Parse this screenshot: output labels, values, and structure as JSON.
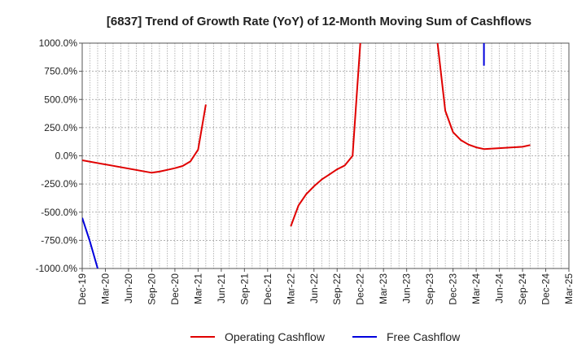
{
  "chart_data": {
    "type": "line",
    "title": "[6837]  Trend of Growth Rate (YoY) of 12-Month Moving Sum of Cashflows",
    "xlabel": "",
    "ylabel": "",
    "ylim": [
      -1000,
      1000
    ],
    "y_ticks": [
      1000,
      750,
      500,
      250,
      0,
      -250,
      -500,
      -750,
      -1000
    ],
    "y_tick_labels": [
      "1000.0%",
      "750.0%",
      "500.0%",
      "250.0%",
      "0.0%",
      "-250.0%",
      "-500.0%",
      "-750.0%",
      "-1000.0%"
    ],
    "x_tick_labels": [
      "Dec-19",
      "Mar-20",
      "Jun-20",
      "Sep-20",
      "Dec-20",
      "Mar-21",
      "Jun-21",
      "Sep-21",
      "Dec-21",
      "Mar-22",
      "Jun-22",
      "Sep-22",
      "Dec-22",
      "Mar-23",
      "Jun-23",
      "Sep-23",
      "Dec-23",
      "Mar-24",
      "Jun-24",
      "Sep-24",
      "Dec-24",
      "Mar-25"
    ],
    "x_range": [
      "Dec-19",
      "Mar-25"
    ],
    "grid": true,
    "legend_position": "bottom-center",
    "series": [
      {
        "name": "Operating Cashflow",
        "color": "#e00000",
        "points": [
          [
            "Dec-19",
            -40
          ],
          [
            "Sep-20",
            -150
          ],
          [
            "Oct-20",
            -140
          ],
          [
            "Nov-20",
            -125
          ],
          [
            "Dec-20",
            -110
          ],
          [
            "Jan-21",
            -90
          ],
          [
            "Feb-21",
            -50
          ],
          [
            "Mar-21",
            55
          ],
          [
            "Apr-21",
            455
          ],
          null,
          [
            "Mar-22",
            -625
          ],
          [
            "Apr-22",
            -440
          ],
          [
            "May-22",
            -340
          ],
          [
            "Jun-22",
            -270
          ],
          [
            "Jul-22",
            -210
          ],
          [
            "Aug-22",
            -165
          ],
          [
            "Sep-22",
            -120
          ],
          [
            "Oct-22",
            -85
          ],
          [
            "Nov-22",
            0
          ],
          [
            "Dec-22",
            1000
          ],
          null,
          [
            "Oct-23",
            1000
          ],
          [
            "Nov-23",
            400
          ],
          [
            "Dec-23",
            210
          ],
          [
            "Jan-24",
            140
          ],
          [
            "Feb-24",
            100
          ],
          [
            "Mar-24",
            75
          ],
          [
            "Apr-24",
            60
          ],
          [
            "Sep-24",
            80
          ],
          [
            "Oct-24",
            95
          ]
        ]
      },
      {
        "name": "Free Cashflow",
        "color": "#0000dd",
        "points": [
          [
            "Dec-19",
            -550
          ],
          [
            "Jan-20",
            -760
          ],
          [
            "Feb-20",
            -1000
          ],
          null,
          [
            "Apr-24",
            800
          ],
          [
            "Apr-24",
            1000
          ]
        ]
      }
    ]
  }
}
